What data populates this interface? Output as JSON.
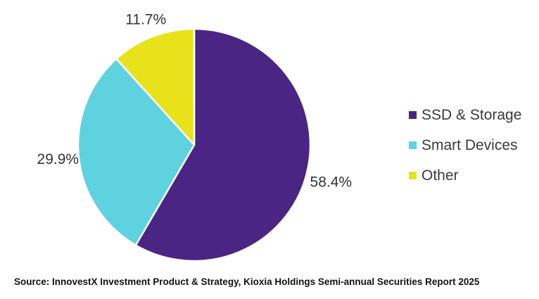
{
  "chart_data": {
    "type": "pie",
    "title": "",
    "categories": [
      "SSD & Storage",
      "Smart Devices",
      "Other"
    ],
    "values": [
      58.4,
      29.9,
      11.7
    ],
    "value_labels": [
      "58.4%",
      "29.9%",
      "11.7%"
    ],
    "colors": [
      "#4a2584",
      "#5fd2e0",
      "#e8e21a"
    ],
    "start_angle_deg": 0,
    "direction": "clockwise",
    "legend_position": "right"
  },
  "source": "Source: InnovestX Investment Product & Strategy, Kioxia Holdings Semi-annual Securities Report 2025"
}
